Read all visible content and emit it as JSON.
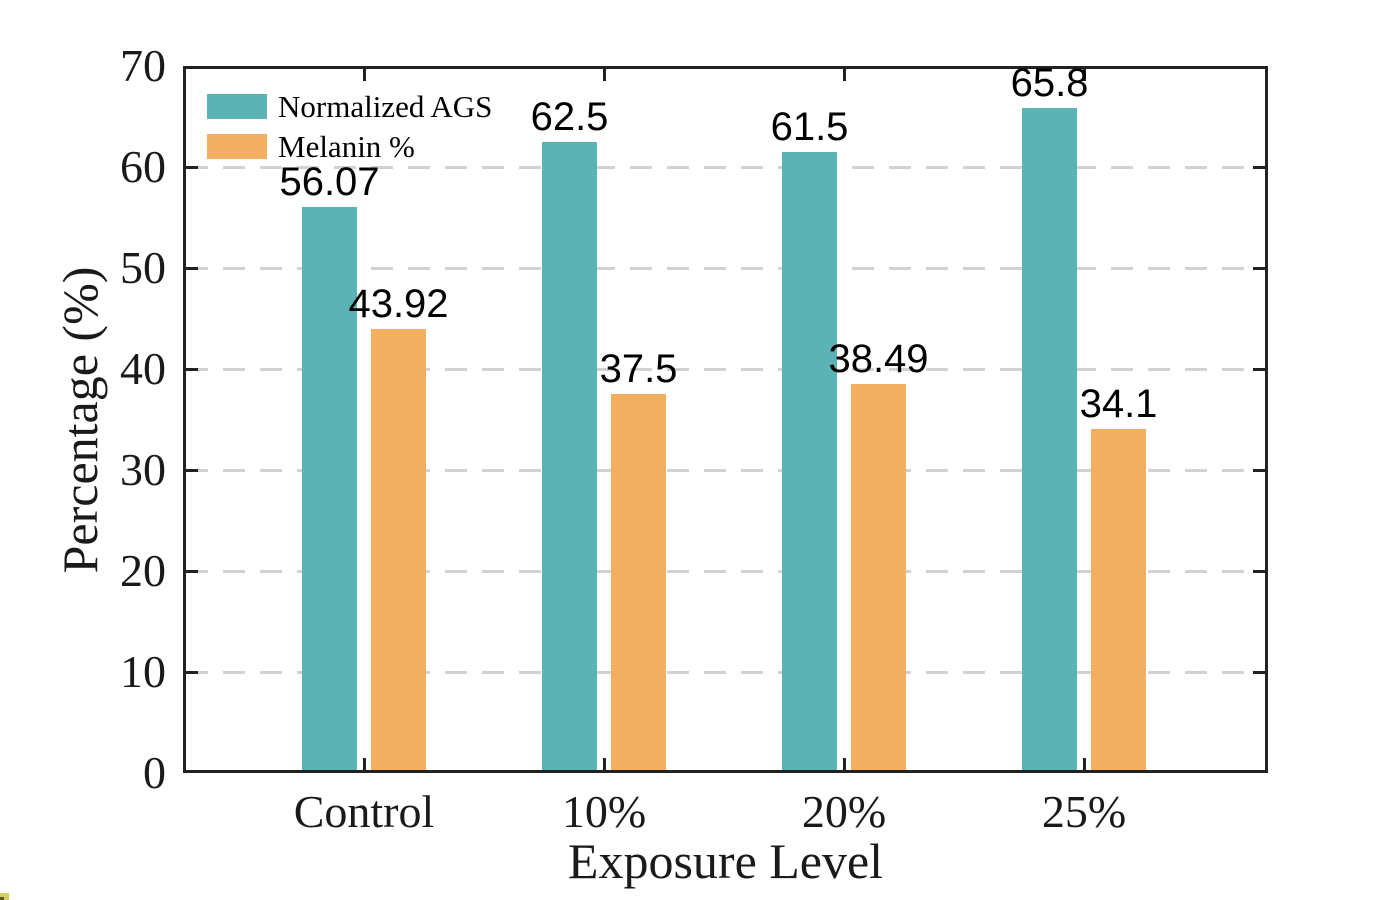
{
  "chart_data": {
    "type": "bar",
    "title": "",
    "categories": [
      "Control",
      "10%",
      "20%",
      "25%"
    ],
    "series": [
      {
        "name": "Normalized AGS",
        "color": "#5cb3b5",
        "values": [
          56.07,
          62.5,
          61.5,
          65.8
        ],
        "display_values": [
          "56.07",
          "62.5",
          "61.5",
          "65.8"
        ]
      },
      {
        "name": "Melanin %",
        "color": "#f2ae61",
        "values": [
          43.92,
          37.5,
          38.49,
          34.1
        ],
        "display_values": [
          "43.92",
          "37.5",
          "38.49",
          "34.1"
        ]
      }
    ],
    "xlabel": "Exposure Level",
    "ylabel": "Percentage (%)",
    "ylim": [
      0,
      70
    ],
    "yticks": [
      0,
      10,
      20,
      30,
      40,
      50,
      60,
      70
    ],
    "grid": "horizontal-dashed",
    "grid_color": "#d2d2d2",
    "axis_color": "#222222",
    "legend_position": "top-left",
    "value_label_font": "sans-serif",
    "axis_font": "serif"
  }
}
